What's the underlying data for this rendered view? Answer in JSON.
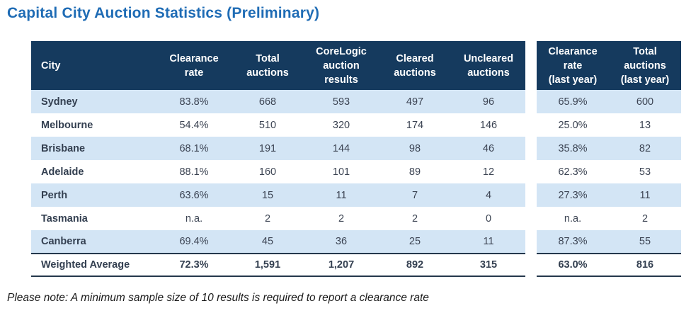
{
  "title": "Capital City Auction Statistics (Preliminary)",
  "note": "Please note: A minimum sample size of 10 results is required to report a clearance rate",
  "colors": {
    "header_bg": "#153A5E",
    "row_alt_bg": "#D3E5F5",
    "title_blue": "#1F6CB5",
    "city_text": "#333F50",
    "value_text": "#3C4453",
    "total_border": "#24384C"
  },
  "table": {
    "headers": {
      "city": [
        "City"
      ],
      "clearance_rate": [
        "Clearance",
        "rate"
      ],
      "total_auctions": [
        "Total",
        "auctions"
      ],
      "corelogic_results": [
        "CoreLogic",
        "auction",
        "results"
      ],
      "cleared": [
        "Cleared",
        "auctions"
      ],
      "uncleared": [
        "Uncleared",
        "auctions"
      ],
      "clearance_rate_last_year": [
        "Clearance",
        "rate",
        "(last year)"
      ],
      "total_auctions_last_year": [
        "Total",
        "auctions",
        "(last year)"
      ]
    },
    "rows": [
      {
        "city": "Sydney",
        "values": [
          "83.8%",
          "668",
          "593",
          "497",
          "96",
          "65.9%",
          "600"
        ]
      },
      {
        "city": "Melbourne",
        "values": [
          "54.4%",
          "510",
          "320",
          "174",
          "146",
          "25.0%",
          "13"
        ]
      },
      {
        "city": "Brisbane",
        "values": [
          "68.1%",
          "191",
          "144",
          "98",
          "46",
          "35.8%",
          "82"
        ]
      },
      {
        "city": "Adelaide",
        "values": [
          "88.1%",
          "160",
          "101",
          "89",
          "12",
          "62.3%",
          "53"
        ]
      },
      {
        "city": "Perth",
        "values": [
          "63.6%",
          "15",
          "11",
          "7",
          "4",
          "27.3%",
          "11"
        ]
      },
      {
        "city": "Tasmania",
        "values": [
          "n.a.",
          "2",
          "2",
          "2",
          "0",
          "n.a.",
          "2"
        ]
      },
      {
        "city": "Canberra",
        "values": [
          "69.4%",
          "45",
          "36",
          "25",
          "11",
          "87.3%",
          "55"
        ]
      }
    ],
    "total_row": {
      "city": "Weighted Average",
      "values": [
        "72.3%",
        "1,591",
        "1,207",
        "892",
        "315",
        "63.0%",
        "816"
      ]
    }
  }
}
